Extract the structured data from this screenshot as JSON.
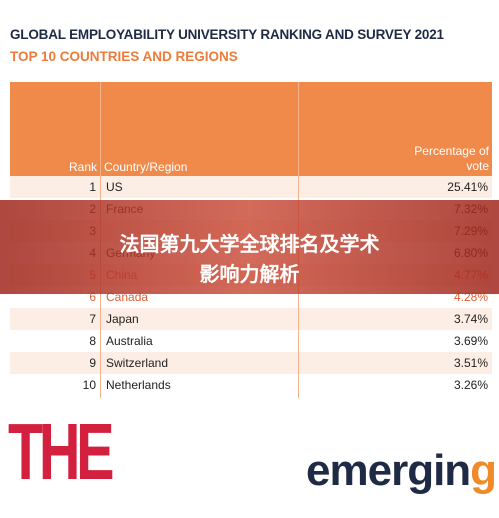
{
  "header": {
    "title": "GLOBAL EMPLOYABILITY UNIVERSITY RANKING AND SURVEY 2021",
    "subtitle": "TOP 10 COUNTRIES AND REGIONS"
  },
  "table": {
    "columns": [
      "Rank",
      "Country/Region",
      "Percentage of vote"
    ],
    "rows": [
      {
        "rank": "1",
        "country": "US",
        "pct": "25.41%"
      },
      {
        "rank": "2",
        "country": "France",
        "pct": "7.32%"
      },
      {
        "rank": "3",
        "pct": "7.29%"
      },
      {
        "rank": "4",
        "country": "Germany",
        "pct": "6.80%"
      },
      {
        "rank": "5",
        "country": "China",
        "pct": "4.77%"
      },
      {
        "rank": "6",
        "country": "Canada",
        "pct": "4.28%"
      },
      {
        "rank": "7",
        "country": "Japan",
        "pct": "3.74%"
      },
      {
        "rank": "8",
        "country": "Australia",
        "pct": "3.69%"
      },
      {
        "rank": "9",
        "country": "Switzerland",
        "pct": "3.51%"
      },
      {
        "rank": "10",
        "country": "Netherlands",
        "pct": "3.26%"
      }
    ]
  },
  "banner": {
    "lines": [
      "法国第九大学全球排名及学术",
      "影响力解析"
    ]
  },
  "logos": {
    "left": "THE",
    "right": "emerging"
  }
}
